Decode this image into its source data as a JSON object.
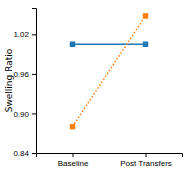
{
  "chart_data": {
    "type": "line",
    "categories": [
      "Baseline",
      "Post Transfers"
    ],
    "series": [
      {
        "values": [
          1.005,
          1.005
        ],
        "line_style": "solid",
        "marker": "square"
      },
      {
        "values": [
          0.88,
          1.048
        ],
        "line_style": "dotted",
        "marker": "square"
      }
    ],
    "y_label": "Swelling Ratio",
    "ylim": [
      0.84,
      1.06
    ],
    "yticks": [
      0.84,
      {
        "value": 0.9,
        "label": "0.90"
      },
      0.96,
      1.02
    ],
    "grid": false
  }
}
